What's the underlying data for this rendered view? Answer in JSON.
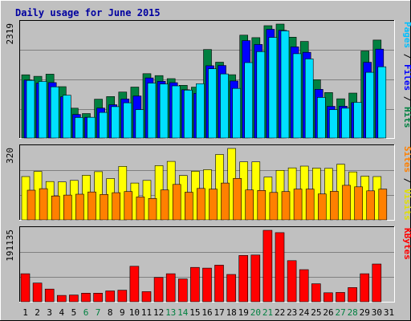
{
  "chart_data": [
    {
      "type": "bar",
      "title": "Daily usage for June 2015",
      "x": [
        "1",
        "2",
        "3",
        "4",
        "5",
        "6",
        "7",
        "8",
        "9",
        "10",
        "11",
        "12",
        "13",
        "14",
        "15",
        "16",
        "17",
        "18",
        "19",
        "20",
        "21",
        "22",
        "23",
        "24",
        "25",
        "26",
        "27",
        "28",
        "29",
        "30",
        "31"
      ],
      "weekend_days": [
        "6",
        "7",
        "13",
        "14",
        "20",
        "21",
        "27",
        "28"
      ],
      "ymax_label": "2319",
      "ylim": [
        0,
        2319
      ],
      "right_labels": [
        "Pages",
        "Files",
        "Hits"
      ],
      "series": [
        {
          "name": "Hits",
          "color": "#008040",
          "values": [
            1287,
            1256,
            1300,
            1045,
            607,
            498,
            790,
            845,
            935,
            1037,
            1309,
            1270,
            1208,
            1073,
            1035,
            1801,
            1544,
            1289,
            2093,
            2043,
            2286,
            2319,
            2053,
            1966,
            1187,
            926,
            799,
            914,
            1772,
            1994,
            0
          ]
        },
        {
          "name": "Files",
          "color": "#0000ff",
          "values": [
            1180,
            1117,
            1128,
            839,
            480,
            422,
            609,
            677,
            795,
            855,
            1223,
            1155,
            1127,
            983,
            910,
            1471,
            1476,
            1161,
            1983,
            1905,
            2213,
            2191,
            1856,
            1744,
            992,
            645,
            648,
            721,
            1541,
            1810,
            0
          ]
        },
        {
          "name": "Pages",
          "color": "#00e0ff",
          "values": [
            1173,
            1151,
            1042,
            872,
            418,
            421,
            521,
            638,
            717,
            578,
            1118,
            1099,
            1061,
            975,
            1106,
            1409,
            1305,
            1009,
            1535,
            1759,
            2048,
            2181,
            1717,
            1610,
            827,
            578,
            607,
            727,
            1337,
            1451,
            0
          ]
        }
      ]
    },
    {
      "type": "bar",
      "ymax_label": "320",
      "ylim": [
        0,
        320
      ],
      "right_labels": [
        "Sites",
        "Visits"
      ],
      "series": [
        {
          "name": "Visits",
          "color": "#ffff00",
          "values": [
            194,
            217,
            172,
            170,
            177,
            200,
            216,
            185,
            240,
            165,
            177,
            243,
            262,
            199,
            218,
            225,
            293,
            320,
            260,
            260,
            192,
            222,
            233,
            241,
            232,
            231,
            249,
            215,
            196,
            194,
            0
          ]
        },
        {
          "name": "Sites",
          "color": "#ff8000",
          "values": [
            133,
            140,
            107,
            111,
            115,
            125,
            114,
            122,
            127,
            103,
            96,
            134,
            159,
            124,
            141,
            138,
            165,
            186,
            134,
            132,
            123,
            127,
            138,
            138,
            116,
            128,
            155,
            148,
            130,
            138,
            0
          ]
        }
      ]
    },
    {
      "type": "bar",
      "ymax_label": "191135",
      "ylim": [
        0,
        191135
      ],
      "right_labels": [
        "KBytes"
      ],
      "series": [
        {
          "name": "KBytes",
          "color": "#ff0000",
          "values": [
            75000,
            50000,
            34000,
            17000,
            18000,
            23000,
            23000,
            29000,
            31000,
            95000,
            27000,
            65000,
            75000,
            61000,
            92000,
            90000,
            98000,
            73000,
            124000,
            125000,
            191135,
            185000,
            110000,
            86000,
            48000,
            24000,
            25000,
            38000,
            75000,
            101000,
            0
          ]
        }
      ]
    }
  ]
}
